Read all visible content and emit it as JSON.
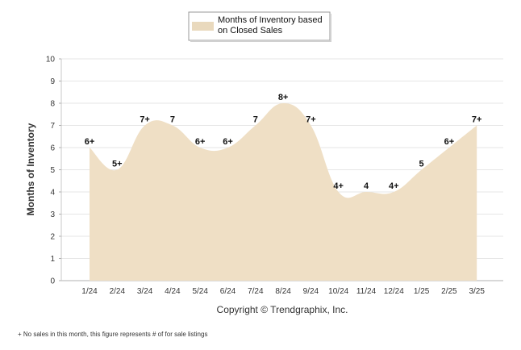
{
  "chart_data": {
    "type": "area",
    "categories": [
      "1/24",
      "2/24",
      "3/24",
      "4/24",
      "5/24",
      "6/24",
      "7/24",
      "8/24",
      "9/24",
      "10/24",
      "11/24",
      "12/24",
      "1/25",
      "2/25",
      "3/25"
    ],
    "series": [
      {
        "name": "Months of Inventory based on Closed Sales",
        "values": [
          6,
          5,
          7,
          7,
          6,
          6,
          7,
          8,
          7,
          4,
          4,
          4,
          5,
          6,
          7
        ],
        "labels": [
          "6+",
          "5+",
          "7+",
          "7",
          "6+",
          "6+",
          "7",
          "8+",
          "7+",
          "4+",
          "4",
          "4+",
          "5",
          "6+",
          "7+"
        ]
      }
    ],
    "ylabel": "Months of Inventory",
    "ylim": [
      0,
      10
    ],
    "yticks": [
      0,
      1,
      2,
      3,
      4,
      5,
      6,
      7,
      8,
      9,
      10
    ],
    "grid": true,
    "legend_position": "top-center",
    "fill_color": "#efdfc5",
    "legend_swatch_color": "#e9d9bd",
    "grid_color": "#e6e6e6"
  },
  "copyright": "Copyright © Trendgraphix, Inc.",
  "footnote": "+ No sales in this month, this figure represents # of for sale listings",
  "legend_lines": [
    "Months of Inventory based",
    "on Closed Sales"
  ]
}
